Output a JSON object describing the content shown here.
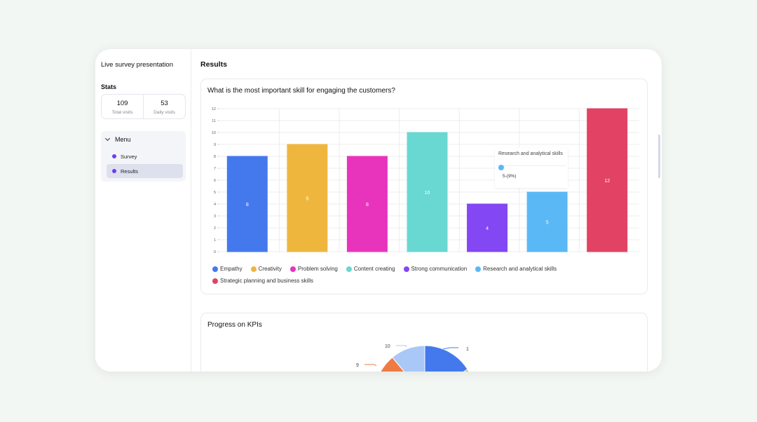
{
  "app": {
    "title": "Live survey presentation"
  },
  "sidebar": {
    "stats_label": "Stats",
    "stats": [
      {
        "value": "109",
        "label": "Total visits"
      },
      {
        "value": "53",
        "label": "Daily visits"
      }
    ],
    "menu": {
      "label": "Menu",
      "items": [
        {
          "label": "Survey",
          "active": false
        },
        {
          "label": "Results",
          "active": true
        }
      ]
    }
  },
  "main": {
    "page_title": "Results",
    "cards": [
      {
        "title": "What is the most important skill for engaging the customers?"
      },
      {
        "title": "Progress on KPIs"
      }
    ],
    "tooltip": {
      "title": "Research and analytical skills",
      "value": "5-(9%)",
      "color": "#5ab8f5"
    }
  },
  "chart_data": [
    {
      "type": "bar",
      "title": "What is the most important skill for engaging the customers?",
      "xlabel": "",
      "ylabel": "",
      "ylim": [
        0,
        12
      ],
      "yticks": [
        "0",
        "1",
        "2",
        "3",
        "4",
        "5",
        "6",
        "7",
        "8",
        "9",
        "10",
        "11",
        "12"
      ],
      "grid": true,
      "legend_position": "bottom",
      "categories": [
        "Empathy",
        "Creativity",
        "Problem solving",
        "Content creating",
        "Strong communication",
        "Research and analytical skills",
        "Strategic planning and business skills"
      ],
      "values": [
        8,
        9,
        8,
        10,
        4,
        5,
        12
      ],
      "colors": [
        "#4479ee",
        "#efb63e",
        "#e834bd",
        "#69d7d2",
        "#8347f4",
        "#5ab8f5",
        "#e24263"
      ]
    },
    {
      "type": "pie",
      "title": "Progress on KPIs",
      "visible_labels": [
        "1",
        "9",
        "10"
      ],
      "visible_colors": [
        "#4479ee",
        "#ee7b43",
        "#a9c8f7",
        "#f3b53e"
      ]
    }
  ]
}
